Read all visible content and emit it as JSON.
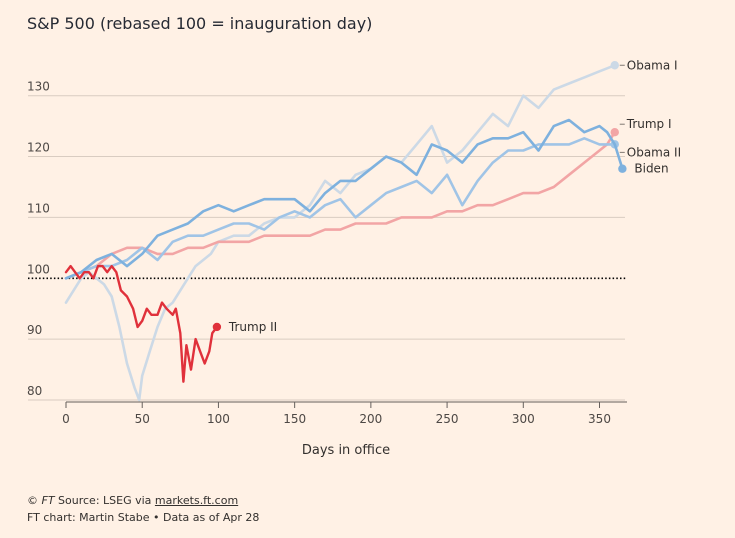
{
  "title": "S&P 500 (rebased 100 = inauguration day)",
  "footer": {
    "copyright": "©",
    "ft": "FT",
    "source_prefix": "Source: LSEG via",
    "source_link": "markets.ft.com",
    "line2": "FT chart: Martin Stabe • Data as of Apr 28"
  },
  "chart_data": {
    "type": "line",
    "title": "S&P 500 (rebased 100 = inauguration day)",
    "xlabel": "Days in office",
    "ylabel": "",
    "xlim": [
      0,
      370
    ],
    "ylim": [
      80,
      138
    ],
    "xticks": [
      0,
      50,
      100,
      150,
      200,
      250,
      300,
      350
    ],
    "yticks": [
      80,
      90,
      100,
      110,
      120,
      130
    ],
    "baseline": 100,
    "grid": true,
    "series": [
      {
        "name": "Obama I",
        "color": "#ccd9e6",
        "points": [
          [
            0,
            96
          ],
          [
            5,
            98
          ],
          [
            10,
            100
          ],
          [
            15,
            101
          ],
          [
            20,
            100
          ],
          [
            25,
            99
          ],
          [
            30,
            97
          ],
          [
            35,
            92
          ],
          [
            40,
            86
          ],
          [
            45,
            82
          ],
          [
            48,
            80
          ],
          [
            50,
            84
          ],
          [
            55,
            88
          ],
          [
            60,
            92
          ],
          [
            65,
            95
          ],
          [
            70,
            96
          ],
          [
            75,
            98
          ],
          [
            80,
            100
          ],
          [
            85,
            102
          ],
          [
            90,
            103
          ],
          [
            95,
            104
          ],
          [
            100,
            106
          ],
          [
            110,
            107
          ],
          [
            120,
            107
          ],
          [
            130,
            109
          ],
          [
            140,
            110
          ],
          [
            150,
            110
          ],
          [
            160,
            112
          ],
          [
            170,
            116
          ],
          [
            180,
            114
          ],
          [
            190,
            117
          ],
          [
            200,
            118
          ],
          [
            210,
            120
          ],
          [
            220,
            119
          ],
          [
            230,
            122
          ],
          [
            240,
            125
          ],
          [
            250,
            119
          ],
          [
            260,
            121
          ],
          [
            270,
            124
          ],
          [
            280,
            127
          ],
          [
            290,
            125
          ],
          [
            300,
            130
          ],
          [
            310,
            128
          ],
          [
            320,
            131
          ],
          [
            330,
            132
          ],
          [
            340,
            133
          ],
          [
            350,
            134
          ],
          [
            360,
            135
          ]
        ]
      },
      {
        "name": "Trump I",
        "color": "#f2a5a5",
        "points": [
          [
            0,
            100
          ],
          [
            10,
            101
          ],
          [
            20,
            102
          ],
          [
            30,
            104
          ],
          [
            40,
            105
          ],
          [
            50,
            105
          ],
          [
            60,
            104
          ],
          [
            70,
            104
          ],
          [
            80,
            105
          ],
          [
            90,
            105
          ],
          [
            100,
            106
          ],
          [
            110,
            106
          ],
          [
            120,
            106
          ],
          [
            130,
            107
          ],
          [
            140,
            107
          ],
          [
            150,
            107
          ],
          [
            160,
            107
          ],
          [
            170,
            108
          ],
          [
            180,
            108
          ],
          [
            190,
            109
          ],
          [
            200,
            109
          ],
          [
            210,
            109
          ],
          [
            220,
            110
          ],
          [
            230,
            110
          ],
          [
            240,
            110
          ],
          [
            250,
            111
          ],
          [
            260,
            111
          ],
          [
            270,
            112
          ],
          [
            280,
            112
          ],
          [
            290,
            113
          ],
          [
            300,
            114
          ],
          [
            310,
            114
          ],
          [
            320,
            115
          ],
          [
            330,
            117
          ],
          [
            340,
            119
          ],
          [
            350,
            121
          ],
          [
            355,
            122
          ],
          [
            360,
            124
          ]
        ]
      },
      {
        "name": "Obama II",
        "color": "#a0c4e6",
        "points": [
          [
            0,
            100
          ],
          [
            10,
            101
          ],
          [
            20,
            102
          ],
          [
            30,
            102
          ],
          [
            40,
            103
          ],
          [
            50,
            105
          ],
          [
            60,
            103
          ],
          [
            70,
            106
          ],
          [
            80,
            107
          ],
          [
            90,
            107
          ],
          [
            100,
            108
          ],
          [
            110,
            109
          ],
          [
            120,
            109
          ],
          [
            130,
            108
          ],
          [
            140,
            110
          ],
          [
            150,
            111
          ],
          [
            160,
            110
          ],
          [
            170,
            112
          ],
          [
            180,
            113
          ],
          [
            190,
            110
          ],
          [
            200,
            112
          ],
          [
            210,
            114
          ],
          [
            220,
            115
          ],
          [
            230,
            116
          ],
          [
            240,
            114
          ],
          [
            250,
            117
          ],
          [
            260,
            112
          ],
          [
            270,
            116
          ],
          [
            280,
            119
          ],
          [
            290,
            121
          ],
          [
            300,
            121
          ],
          [
            310,
            122
          ],
          [
            320,
            122
          ],
          [
            330,
            122
          ],
          [
            340,
            123
          ],
          [
            350,
            122
          ],
          [
            360,
            122
          ]
        ]
      },
      {
        "name": "Biden",
        "color": "#7eb1de",
        "points": [
          [
            0,
            100
          ],
          [
            10,
            101
          ],
          [
            20,
            103
          ],
          [
            30,
            104
          ],
          [
            40,
            102
          ],
          [
            50,
            104
          ],
          [
            60,
            107
          ],
          [
            70,
            108
          ],
          [
            80,
            109
          ],
          [
            90,
            111
          ],
          [
            100,
            112
          ],
          [
            110,
            111
          ],
          [
            120,
            112
          ],
          [
            130,
            113
          ],
          [
            140,
            113
          ],
          [
            150,
            113
          ],
          [
            160,
            111
          ],
          [
            170,
            114
          ],
          [
            180,
            116
          ],
          [
            190,
            116
          ],
          [
            200,
            118
          ],
          [
            210,
            120
          ],
          [
            220,
            119
          ],
          [
            230,
            117
          ],
          [
            240,
            122
          ],
          [
            250,
            121
          ],
          [
            260,
            119
          ],
          [
            270,
            122
          ],
          [
            280,
            123
          ],
          [
            290,
            123
          ],
          [
            300,
            124
          ],
          [
            310,
            121
          ],
          [
            320,
            125
          ],
          [
            330,
            126
          ],
          [
            340,
            124
          ],
          [
            350,
            125
          ],
          [
            355,
            124
          ],
          [
            360,
            122
          ],
          [
            365,
            118
          ]
        ]
      },
      {
        "name": "Trump II",
        "color": "#e0313b",
        "points": [
          [
            0,
            101
          ],
          [
            3,
            102
          ],
          [
            6,
            101
          ],
          [
            9,
            100
          ],
          [
            12,
            101
          ],
          [
            15,
            101
          ],
          [
            18,
            100
          ],
          [
            21,
            102
          ],
          [
            24,
            102
          ],
          [
            27,
            101
          ],
          [
            30,
            102
          ],
          [
            33,
            101
          ],
          [
            36,
            98
          ],
          [
            40,
            97
          ],
          [
            44,
            95
          ],
          [
            47,
            92
          ],
          [
            50,
            93
          ],
          [
            53,
            95
          ],
          [
            56,
            94
          ],
          [
            60,
            94
          ],
          [
            63,
            96
          ],
          [
            66,
            95
          ],
          [
            70,
            94
          ],
          [
            72,
            95
          ],
          [
            75,
            91
          ],
          [
            77,
            83
          ],
          [
            79,
            89
          ],
          [
            82,
            85
          ],
          [
            85,
            90
          ],
          [
            88,
            88
          ],
          [
            91,
            86
          ],
          [
            94,
            88
          ],
          [
            96,
            91
          ],
          [
            99,
            92
          ]
        ]
      }
    ]
  }
}
